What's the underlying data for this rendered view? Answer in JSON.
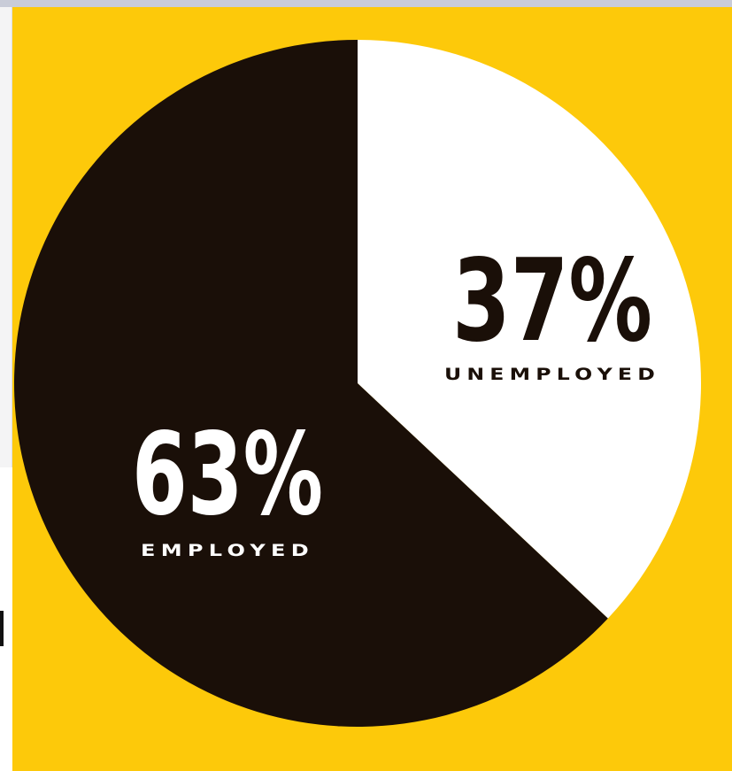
{
  "chart_data": {
    "type": "pie",
    "slices": [
      {
        "label": "UNEMPLOYED",
        "value": 37,
        "value_text": "37%",
        "color": "#ffffff",
        "text_color": "#1a0f08"
      },
      {
        "label": "EMPLOYED",
        "value": 63,
        "value_text": "63%",
        "color": "#1a0f08",
        "text_color": "#ffffff"
      }
    ],
    "start_angle": "12 o'clock",
    "direction": "clockwise",
    "background_color": "#fdc90a"
  }
}
